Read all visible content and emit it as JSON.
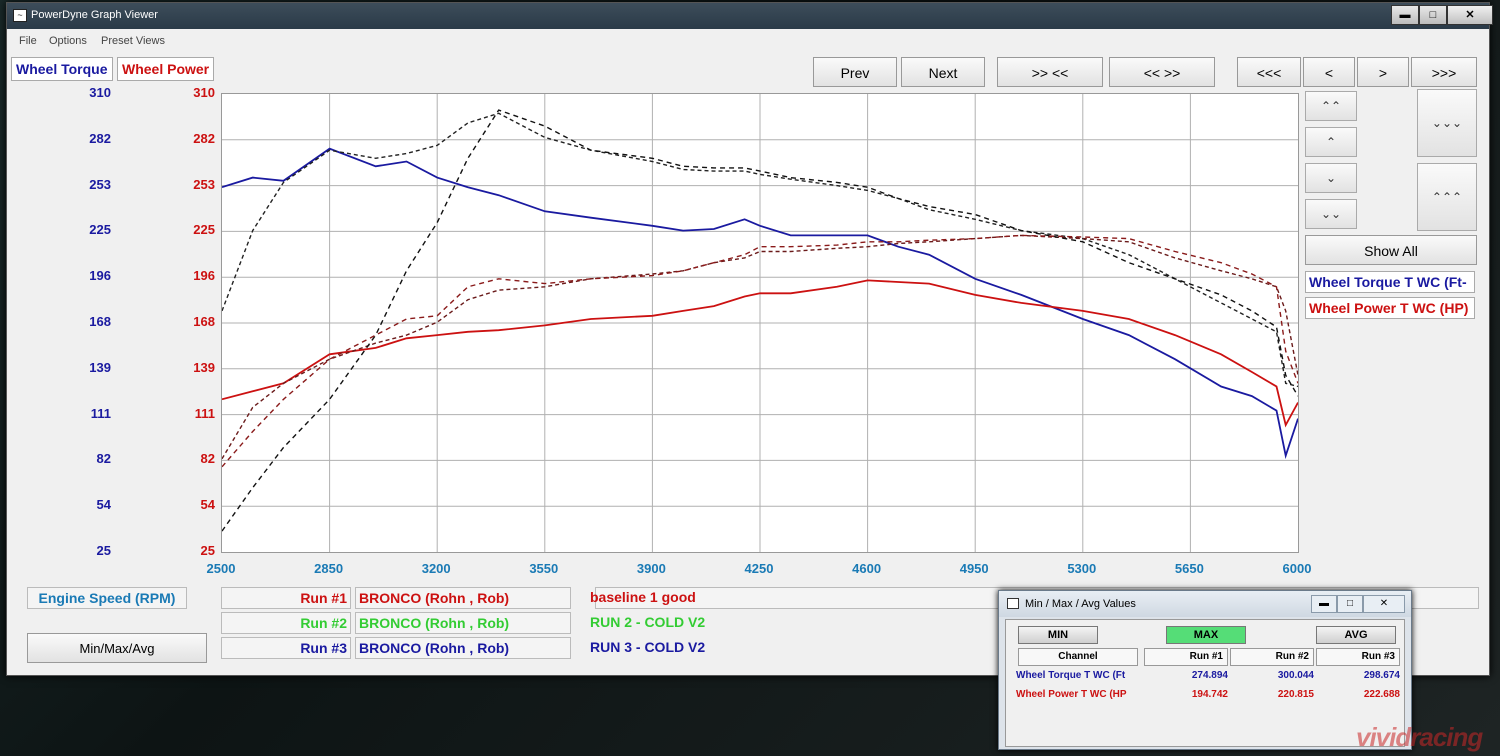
{
  "window": {
    "title": "PowerDyne Graph Viewer",
    "controls": {
      "minimize": "▬",
      "maximize": "□",
      "close": "✕"
    }
  },
  "menu": {
    "items": [
      "File",
      "Options",
      "Preset Views"
    ]
  },
  "tabs": {
    "wheel_torque": "Wheel Torque",
    "wheel_power": "Wheel Power"
  },
  "toolbar": {
    "prev": "Prev",
    "next": "Next",
    "zoom_in": ">> <<",
    "zoom_out": "<< >>",
    "far_left": "<<<",
    "left": "<",
    "right": ">",
    "far_right": ">>>"
  },
  "side_controls": {
    "up_fast_left": "⌃⌃",
    "up_left": "⌃",
    "down_left": "⌄",
    "down_fast_left": "⌄⌄",
    "right_top": "⌄⌄⌄",
    "right_bottom": "⌃⌃⌃",
    "show_all": "Show All",
    "channel_torque": "Wheel Torque T WC (Ft-L",
    "channel_power": "Wheel Power T WC (HP)"
  },
  "axes": {
    "left_ticks": [
      "310",
      "282",
      "253",
      "225",
      "196",
      "168",
      "139",
      "111",
      "82",
      "54",
      "25"
    ],
    "right_ticks": [
      "310",
      "282",
      "253",
      "225",
      "196",
      "168",
      "139",
      "111",
      "82",
      "54",
      "25"
    ],
    "x_ticks": [
      "2500",
      "2850",
      "3200",
      "3550",
      "3900",
      "4250",
      "4600",
      "4950",
      "5300",
      "5650",
      "6000"
    ],
    "x_label": "Engine Speed (RPM)"
  },
  "colors": {
    "torque": "#1a1aa0",
    "power": "#cc1111",
    "grid": "#b0b0b0",
    "run2": "#33cc33"
  },
  "runs": [
    {
      "label": "Run #1",
      "vehicle": "BRONCO (Rohn , Rob)",
      "note": "baseline 1 good",
      "color": "#cc1111"
    },
    {
      "label": "Run #2",
      "vehicle": "BRONCO (Rohn , Rob)",
      "note": "RUN 2 - COLD V2",
      "color": "#33cc33"
    },
    {
      "label": "Run #3",
      "vehicle": "BRONCO (Rohn , Rob)",
      "note": "RUN 3 - COLD V2",
      "color": "#1a1aa0"
    }
  ],
  "minmaxavg_button": "Min/Max/Avg",
  "popup": {
    "title": "Min / Max / Avg Values",
    "buttons": {
      "min": "MIN",
      "max": "MAX",
      "avg": "AVG"
    },
    "headers": [
      "Channel",
      "Run #1",
      "Run #2",
      "Run #3"
    ],
    "rows": [
      {
        "channel": "Wheel Torque T WC (Ft",
        "values": [
          "274.894",
          "300.044",
          "298.674"
        ],
        "color": "#1a1aa0"
      },
      {
        "channel": "Wheel Power T WC (HP",
        "values": [
          "194.742",
          "220.815",
          "222.688"
        ],
        "color": "#cc1111"
      }
    ]
  },
  "watermark": "vividracing",
  "chart_data": {
    "type": "line",
    "x": [
      2500,
      2600,
      2700,
      2850,
      3000,
      3100,
      3200,
      3300,
      3400,
      3550,
      3700,
      3900,
      4000,
      4100,
      4200,
      4250,
      4350,
      4500,
      4600,
      4700,
      4800,
      4950,
      5100,
      5300,
      5450,
      5600,
      5750,
      5850,
      5930,
      5960,
      6000
    ],
    "xlabel": "Engine Speed (RPM)",
    "xlim": [
      2500,
      6000
    ],
    "ylim": [
      25,
      310
    ],
    "series": [
      {
        "values": [
          252,
          258,
          256,
          276,
          265,
          268,
          258,
          252,
          247,
          237,
          233,
          228,
          225,
          226,
          232,
          228,
          222,
          222,
          222,
          215,
          210,
          195,
          185,
          170,
          160,
          145,
          128,
          122,
          113,
          85,
          108
        ]
      },
      {
        "values": [
          120,
          125,
          130,
          148,
          152,
          158,
          160,
          162,
          163,
          166,
          170,
          172,
          175,
          178,
          184,
          186,
          186,
          190,
          194,
          193,
          192,
          185,
          180,
          175,
          170,
          160,
          148,
          137,
          128,
          104,
          118
        ]
      },
      {
        "values": [
          175,
          225,
          255,
          275,
          270,
          273,
          278,
          292,
          298,
          283,
          275,
          268,
          263,
          262,
          262,
          260,
          257,
          253,
          250,
          245,
          238,
          232,
          225,
          220,
          210,
          195,
          180,
          170,
          162,
          130,
          128
        ]
      },
      {
        "values": [
          83,
          115,
          130,
          145,
          155,
          160,
          168,
          182,
          188,
          190,
          195,
          198,
          200,
          205,
          208,
          212,
          212,
          214,
          215,
          217,
          218,
          220,
          222,
          220,
          218,
          208,
          200,
          195,
          190,
          175,
          135
        ]
      },
      {
        "values": [
          38,
          65,
          90,
          120,
          160,
          200,
          230,
          270,
          300,
          290,
          275,
          270,
          265,
          264,
          264,
          262,
          258,
          255,
          252,
          245,
          240,
          235,
          225,
          218,
          205,
          195,
          185,
          175,
          165,
          135,
          122
        ]
      },
      {
        "values": [
          78,
          100,
          120,
          145,
          160,
          170,
          172,
          190,
          195,
          192,
          195,
          197,
          200,
          205,
          210,
          215,
          215,
          216,
          218,
          218,
          219,
          220,
          222,
          221,
          220,
          212,
          205,
          198,
          190,
          150,
          130
        ]
      }
    ]
  }
}
